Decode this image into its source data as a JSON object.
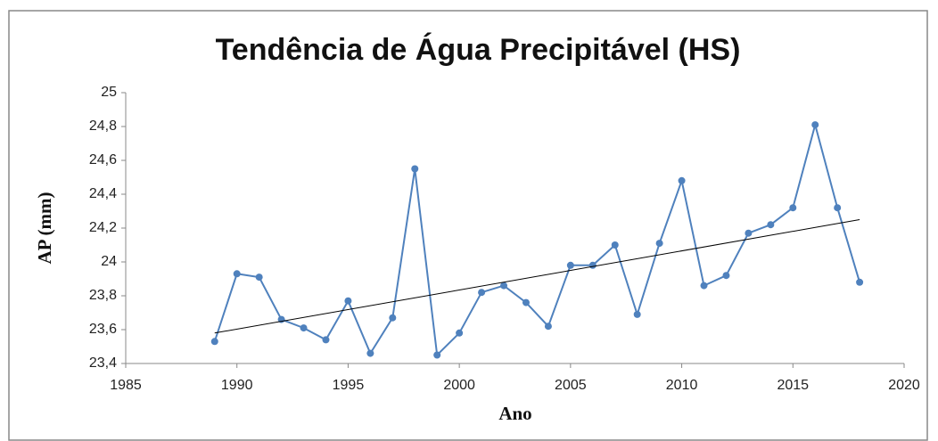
{
  "chart_data": {
    "type": "line",
    "title": "Tendência de Água Precipitável (HS)",
    "x_label": "Ano",
    "y_label": "AP (mm)",
    "x": [
      1989,
      1990,
      1991,
      1992,
      1993,
      1994,
      1995,
      1996,
      1997,
      1998,
      1999,
      2000,
      2001,
      2002,
      2003,
      2004,
      2005,
      2006,
      2007,
      2008,
      2009,
      2010,
      2011,
      2012,
      2013,
      2014,
      2015,
      2016,
      2017,
      2018
    ],
    "series": [
      {
        "color": "#4f81bd",
        "values": [
          23.53,
          23.93,
          23.91,
          23.66,
          23.61,
          23.54,
          23.77,
          23.46,
          23.67,
          24.55,
          23.45,
          23.58,
          23.82,
          23.86,
          23.76,
          23.62,
          23.98,
          23.98,
          24.1,
          23.69,
          24.11,
          24.48,
          23.86,
          23.92,
          24.17,
          24.22,
          24.32,
          24.81,
          24.32,
          23.88
        ]
      }
    ],
    "trendline": {
      "x": [
        1989,
        2018
      ],
      "values": [
        23.58,
        24.25
      ],
      "color": "#000000"
    },
    "xlim": [
      1985,
      2020
    ],
    "xticks": [
      1985,
      1990,
      1995,
      2000,
      2005,
      2010,
      2015,
      2020
    ],
    "ylim": [
      23.4,
      25
    ],
    "yticks": [
      {
        "value": 23.4,
        "label": "23,4"
      },
      {
        "value": 23.6,
        "label": "23,6"
      },
      {
        "value": 23.8,
        "label": "23,8"
      },
      24,
      {
        "value": 24.2,
        "label": "24,2"
      },
      {
        "value": 24.4,
        "label": "24,4"
      },
      {
        "value": 24.6,
        "label": "24,6"
      },
      {
        "value": 24.8,
        "label": "24,8"
      },
      25
    ],
    "grid": false
  }
}
